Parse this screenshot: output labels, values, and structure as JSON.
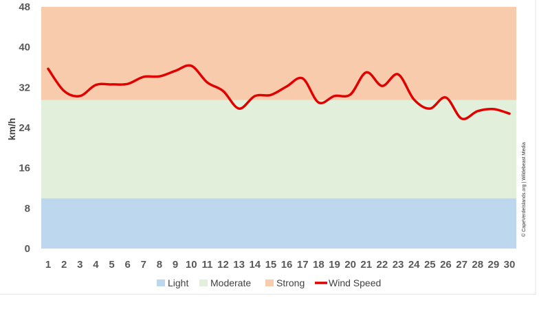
{
  "chart_data": {
    "type": "line",
    "xlabel": "",
    "ylabel": "km/h",
    "ylim": [
      0,
      48
    ],
    "yticks": [
      "0",
      "8",
      "16",
      "24",
      "32",
      "40",
      "48"
    ],
    "categories": [
      "1",
      "2",
      "3",
      "4",
      "5",
      "6",
      "7",
      "8",
      "9",
      "10",
      "11",
      "12",
      "13",
      "14",
      "15",
      "16",
      "17",
      "18",
      "19",
      "20",
      "21",
      "22",
      "23",
      "24",
      "25",
      "26",
      "27",
      "28",
      "29",
      "30"
    ],
    "bands": [
      {
        "name": "Light",
        "from": 0,
        "to": 10,
        "color": "#bdd7ee"
      },
      {
        "name": "Moderate",
        "from": 10,
        "to": 29.5,
        "color": "#e2efda"
      },
      {
        "name": "Strong",
        "from": 29.5,
        "to": 50,
        "color": "#f8cbad"
      }
    ],
    "series": [
      {
        "name": "Wind Speed",
        "color": "#e00000",
        "values": [
          35.7,
          31.3,
          30.3,
          32.5,
          32.6,
          32.7,
          34.1,
          34.2,
          35.3,
          36.3,
          33.0,
          31.3,
          27.8,
          30.3,
          30.5,
          32.2,
          33.8,
          29.0,
          30.3,
          30.6,
          35.0,
          32.3,
          34.6,
          29.6,
          27.8,
          30.0,
          25.8,
          27.3,
          27.7,
          26.8
        ]
      }
    ],
    "legend": {
      "position": "bottom",
      "entries": [
        {
          "label": "Light",
          "kind": "swatch",
          "color": "#bdd7ee"
        },
        {
          "label": "Moderate",
          "kind": "swatch",
          "color": "#e2efda"
        },
        {
          "label": "Strong",
          "kind": "swatch",
          "color": "#f8cbad"
        },
        {
          "label": "Wind Speed",
          "kind": "line",
          "color": "#e00000"
        }
      ]
    },
    "credit": "© CapeVerdeIslands.org | Wildebeast Media",
    "grid": false
  }
}
